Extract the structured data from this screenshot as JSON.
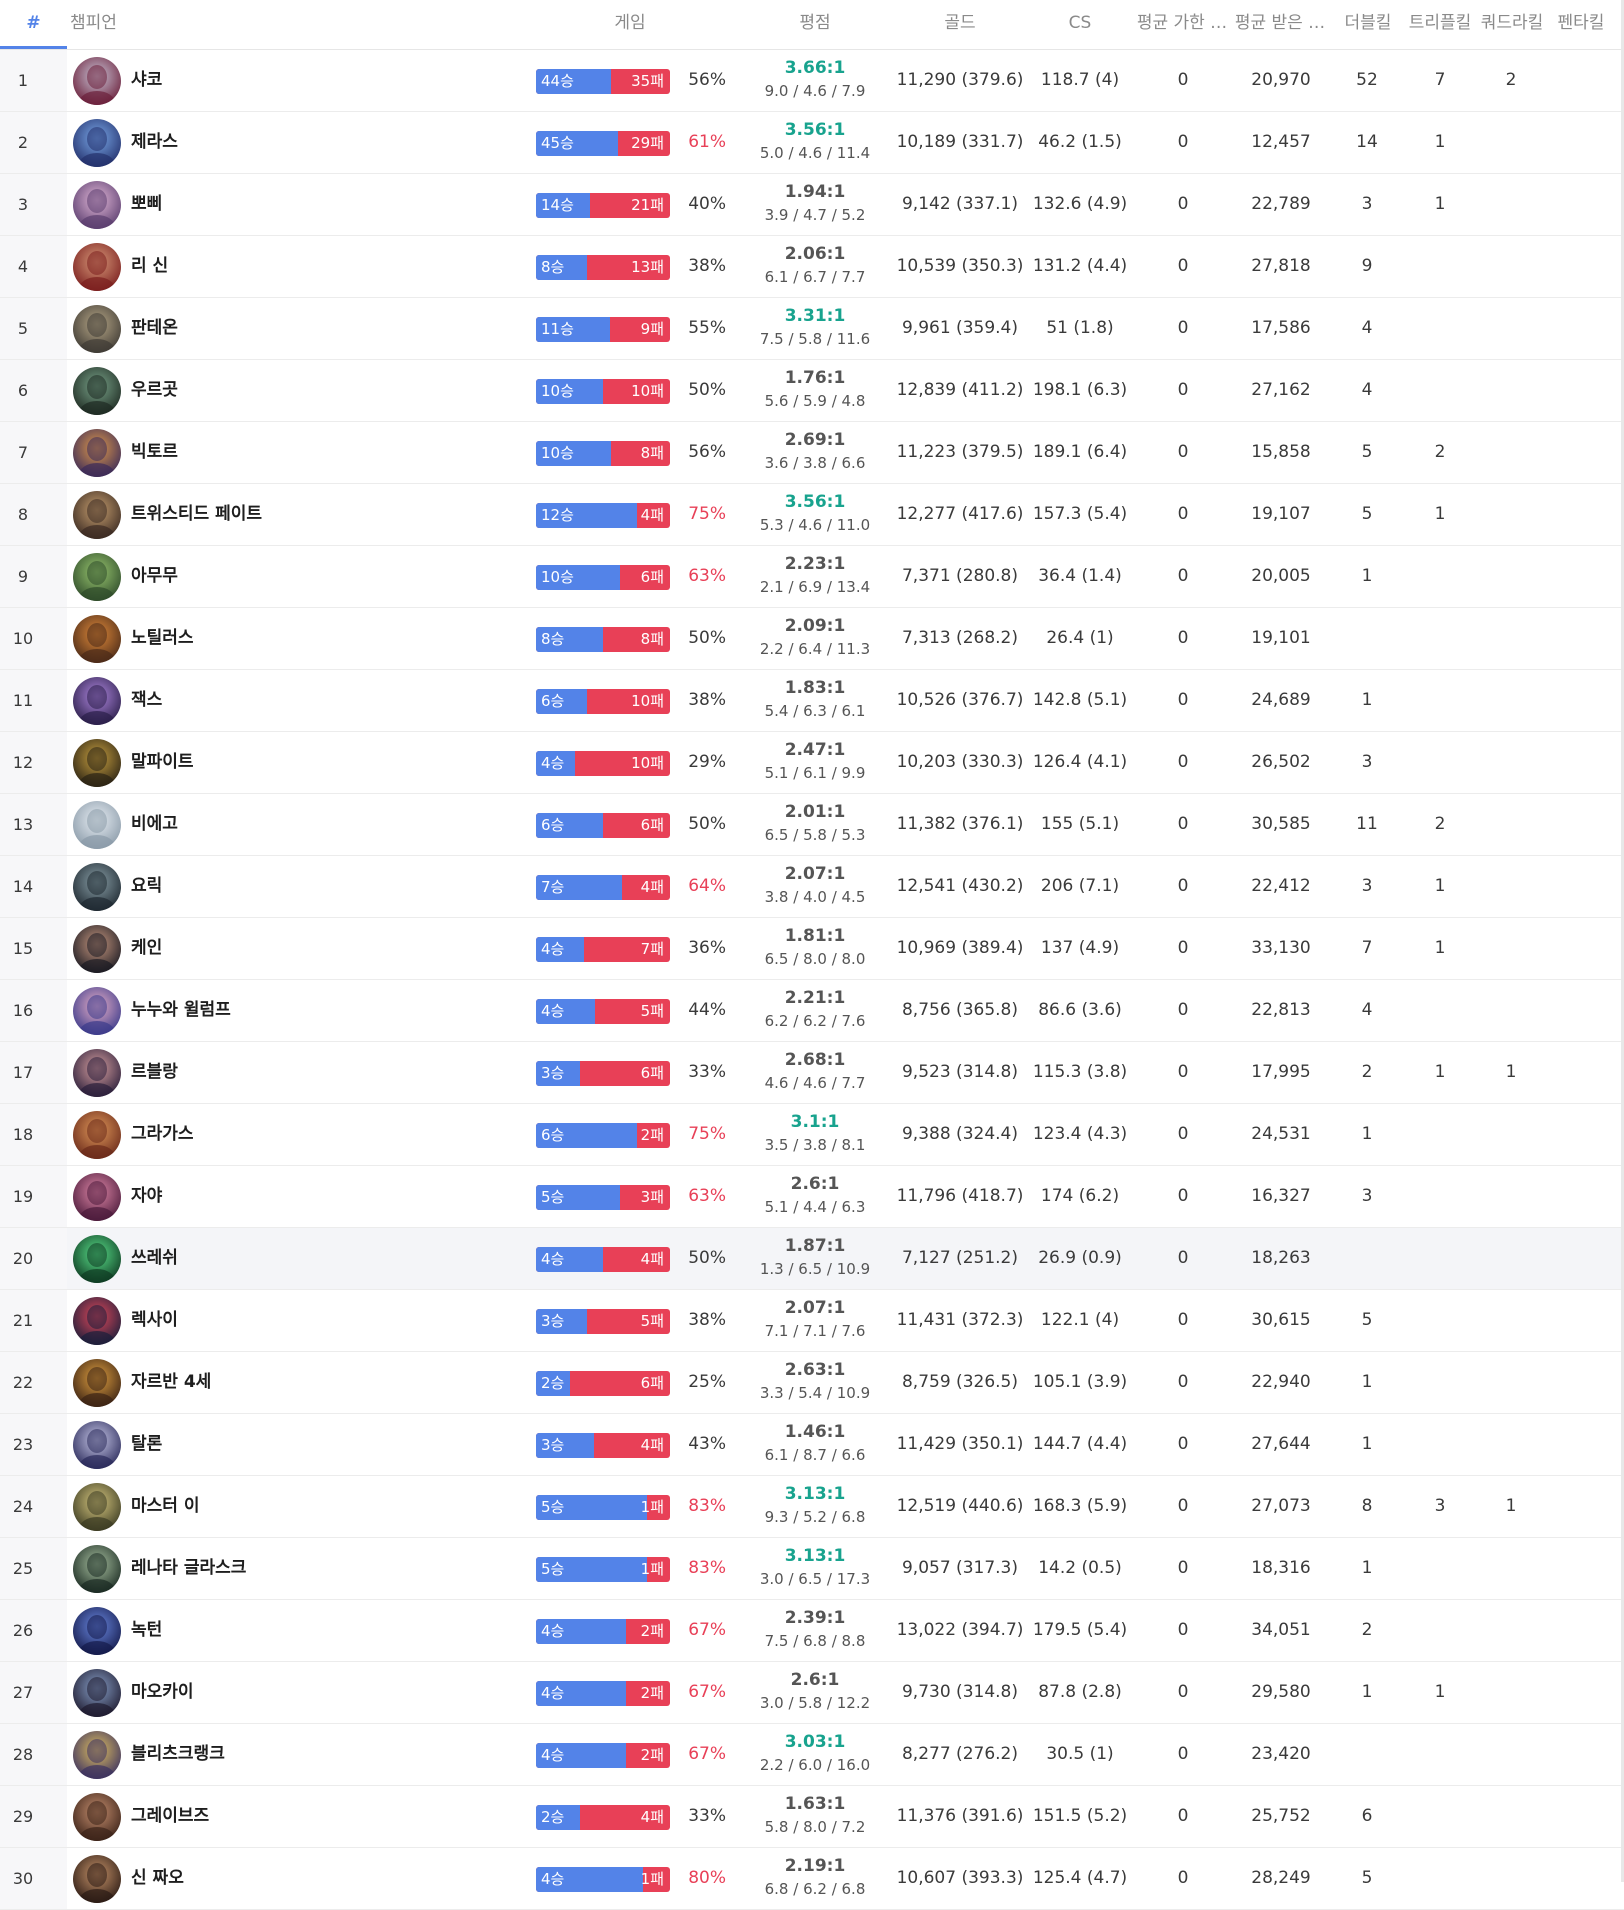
{
  "header": {
    "rank": "#",
    "champion": "챔피언",
    "games": "게임",
    "kda": "평점",
    "gold": "골드",
    "cs": "CS",
    "avg_dealt": "평균 가한 …",
    "avg_taken": "평균 받은 …",
    "double_kill": "더블킬",
    "triple_kill": "트리플킬",
    "quadra_kill": "쿼드라킬",
    "penta_kill": "펜타킬"
  },
  "colors": {
    "win": "#5383e8",
    "loss": "#e84057",
    "kda_good": "#18a38e",
    "highlight_row": "#f4f5f8"
  },
  "rows": [
    {
      "rank": "1",
      "name": "샤코",
      "wins": "44승",
      "losses": "35패",
      "wr": "56%",
      "ratio": "3.66:1",
      "avg": "9.0 / 4.6  / 7.9",
      "gold": "11,290 (379.6)",
      "cs": "118.7 (4)",
      "dealt": "0",
      "taken": "20,970",
      "dbl": "52",
      "tpl": "7",
      "qdr": "2",
      "pnt": "",
      "win_frac": 0.56,
      "icon": "shaco-portrait-icon",
      "c1": "#6b1f3a",
      "c2": "#c9c4d6"
    },
    {
      "rank": "2",
      "name": "제라스",
      "wins": "45승",
      "losses": "29패",
      "wr": "61%",
      "ratio": "3.56:1",
      "avg": "5.0 / 4.6  / 11.4",
      "gold": "10,189 (331.7)",
      "cs": "46.2 (1.5)",
      "dealt": "0",
      "taken": "12,457",
      "dbl": "14",
      "tpl": "1",
      "qdr": "",
      "pnt": "",
      "win_frac": 0.61,
      "icon": "xerath-portrait-icon",
      "c1": "#23306b",
      "c2": "#7aa8e8"
    },
    {
      "rank": "3",
      "name": "뽀삐",
      "wins": "14승",
      "losses": "21패",
      "wr": "40%",
      "ratio": "1.94:1",
      "avg": "3.9 / 4.7  / 5.2",
      "gold": "9,142 (337.1)",
      "cs": "132.6 (4.9)",
      "dealt": "0",
      "taken": "22,789",
      "dbl": "3",
      "tpl": "1",
      "qdr": "",
      "pnt": "",
      "win_frac": 0.4,
      "icon": "poppy-portrait-icon",
      "c1": "#5a3d6e",
      "c2": "#e2b8d8"
    },
    {
      "rank": "4",
      "name": "리 신",
      "wins": "8승",
      "losses": "13패",
      "wr": "38%",
      "ratio": "2.06:1",
      "avg": "6.1 / 6.7  / 7.7",
      "gold": "10,539 (350.3)",
      "cs": "131.2 (4.4)",
      "dealt": "0",
      "taken": "27,818",
      "dbl": "9",
      "tpl": "",
      "qdr": "",
      "pnt": "",
      "win_frac": 0.38,
      "icon": "lee-sin-portrait-icon",
      "c1": "#7a1e1e",
      "c2": "#d89a7a"
    },
    {
      "rank": "5",
      "name": "판테온",
      "wins": "11승",
      "losses": "9패",
      "wr": "55%",
      "ratio": "3.31:1",
      "avg": "7.5 / 5.8  / 11.6",
      "gold": "9,961 (359.4)",
      "cs": "51 (1.8)",
      "dealt": "0",
      "taken": "17,586",
      "dbl": "4",
      "tpl": "",
      "qdr": "",
      "pnt": "",
      "win_frac": 0.55,
      "icon": "pantheon-portrait-icon",
      "c1": "#3e3a34",
      "c2": "#b8a888"
    },
    {
      "rank": "6",
      "name": "우르곳",
      "wins": "10승",
      "losses": "10패",
      "wr": "50%",
      "ratio": "1.76:1",
      "avg": "5.6 / 5.9  / 4.8",
      "gold": "12,839 (411.2)",
      "cs": "198.1 (6.3)",
      "dealt": "0",
      "taken": "27,162",
      "dbl": "4",
      "tpl": "",
      "qdr": "",
      "pnt": "",
      "win_frac": 0.5,
      "icon": "urgot-portrait-icon",
      "c1": "#1e2a22",
      "c2": "#7aa48a"
    },
    {
      "rank": "7",
      "name": "빅토르",
      "wins": "10승",
      "losses": "8패",
      "wr": "56%",
      "ratio": "2.69:1",
      "avg": "3.6 / 3.8  / 6.6",
      "gold": "11,223 (379.5)",
      "cs": "189.1 (6.4)",
      "dealt": "0",
      "taken": "15,858",
      "dbl": "5",
      "tpl": "2",
      "qdr": "",
      "pnt": "",
      "win_frac": 0.56,
      "icon": "viktor-portrait-icon",
      "c1": "#3a2a58",
      "c2": "#e09a4a"
    },
    {
      "rank": "8",
      "name": "트위스티드 페이트",
      "wins": "12승",
      "losses": "4패",
      "wr": "75%",
      "ratio": "3.56:1",
      "avg": "5.3 / 4.6  / 11.0",
      "gold": "12,277 (417.6)",
      "cs": "157.3 (5.4)",
      "dealt": "0",
      "taken": "19,107",
      "dbl": "5",
      "tpl": "1",
      "qdr": "",
      "pnt": "",
      "win_frac": 0.75,
      "icon": "twisted-fate-portrait-icon",
      "c1": "#3a2a22",
      "c2": "#c8a070"
    },
    {
      "rank": "9",
      "name": "아무무",
      "wins": "10승",
      "losses": "6패",
      "wr": "63%",
      "ratio": "2.23:1",
      "avg": "2.1 / 6.9  / 13.4",
      "gold": "7,371 (280.8)",
      "cs": "36.4 (1.4)",
      "dealt": "0",
      "taken": "20,005",
      "dbl": "1",
      "tpl": "",
      "qdr": "",
      "pnt": "",
      "win_frac": 0.63,
      "icon": "amumu-portrait-icon",
      "c1": "#2e4a2a",
      "c2": "#9ac870"
    },
    {
      "rank": "10",
      "name": "노틸러스",
      "wins": "8승",
      "losses": "8패",
      "wr": "50%",
      "ratio": "2.09:1",
      "avg": "2.2 / 6.4  / 11.3",
      "gold": "7,313 (268.2)",
      "cs": "26.4 (1)",
      "dealt": "0",
      "taken": "19,101",
      "dbl": "",
      "tpl": "",
      "qdr": "",
      "pnt": "",
      "win_frac": 0.5,
      "icon": "nautilus-portrait-icon",
      "c1": "#4a2a18",
      "c2": "#e08a3a"
    },
    {
      "rank": "11",
      "name": "잭스",
      "wins": "6승",
      "losses": "10패",
      "wr": "38%",
      "ratio": "1.83:1",
      "avg": "5.4 / 6.3  / 6.1",
      "gold": "10,526 (376.7)",
      "cs": "142.8 (5.1)",
      "dealt": "0",
      "taken": "24,689",
      "dbl": "1",
      "tpl": "",
      "qdr": "",
      "pnt": "",
      "win_frac": 0.38,
      "icon": "jax-portrait-icon",
      "c1": "#2a1e48",
      "c2": "#b088e0"
    },
    {
      "rank": "12",
      "name": "말파이트",
      "wins": "4승",
      "losses": "10패",
      "wr": "29%",
      "ratio": "2.47:1",
      "avg": "5.1 / 6.1  / 9.9",
      "gold": "10,203 (330.3)",
      "cs": "126.4 (4.1)",
      "dealt": "0",
      "taken": "26,502",
      "dbl": "3",
      "tpl": "",
      "qdr": "",
      "pnt": "",
      "win_frac": 0.29,
      "icon": "malphite-portrait-icon",
      "c1": "#2a2214",
      "c2": "#c8a040"
    },
    {
      "rank": "13",
      "name": "비에고",
      "wins": "6승",
      "losses": "6패",
      "wr": "50%",
      "ratio": "2.01:1",
      "avg": "6.5 / 5.8  / 5.3",
      "gold": "11,382 (376.1)",
      "cs": "155 (5.1)",
      "dealt": "0",
      "taken": "30,585",
      "dbl": "11",
      "tpl": "2",
      "qdr": "",
      "pnt": "",
      "win_frac": 0.5,
      "icon": "viego-portrait-icon",
      "c1": "#8a9aa8",
      "c2": "#e8eef4"
    },
    {
      "rank": "14",
      "name": "요릭",
      "wins": "7승",
      "losses": "4패",
      "wr": "64%",
      "ratio": "2.07:1",
      "avg": "3.8 / 4.0  / 4.5",
      "gold": "12,541 (430.2)",
      "cs": "206 (7.1)",
      "dealt": "0",
      "taken": "22,412",
      "dbl": "3",
      "tpl": "1",
      "qdr": "",
      "pnt": "",
      "win_frac": 0.64,
      "icon": "yorick-portrait-icon",
      "c1": "#1e2830",
      "c2": "#8aa0a8"
    },
    {
      "rank": "15",
      "name": "케인",
      "wins": "4승",
      "losses": "7패",
      "wr": "36%",
      "ratio": "1.81:1",
      "avg": "6.5 / 8.0  / 8.0",
      "gold": "10,969 (389.4)",
      "cs": "137 (4.9)",
      "dealt": "0",
      "taken": "33,130",
      "dbl": "7",
      "tpl": "1",
      "qdr": "",
      "pnt": "",
      "win_frac": 0.36,
      "icon": "kayn-portrait-icon",
      "c1": "#1a1a22",
      "c2": "#c89880"
    },
    {
      "rank": "16",
      "name": "누누와 윌럼프",
      "wins": "4승",
      "losses": "5패",
      "wr": "44%",
      "ratio": "2.21:1",
      "avg": "6.2 / 6.2  / 7.6",
      "gold": "8,756 (365.8)",
      "cs": "86.6 (3.6)",
      "dealt": "0",
      "taken": "22,813",
      "dbl": "4",
      "tpl": "",
      "qdr": "",
      "pnt": "",
      "win_frac": 0.44,
      "icon": "nunu-portrait-icon",
      "c1": "#3a3a8a",
      "c2": "#e8b0c8"
    },
    {
      "rank": "17",
      "name": "르블랑",
      "wins": "3승",
      "losses": "6패",
      "wr": "33%",
      "ratio": "2.68:1",
      "avg": "4.6 / 4.6  / 7.7",
      "gold": "9,523 (314.8)",
      "cs": "115.3 (3.8)",
      "dealt": "0",
      "taken": "17,995",
      "dbl": "2",
      "tpl": "1",
      "qdr": "1",
      "pnt": "",
      "win_frac": 0.33,
      "icon": "leblanc-portrait-icon",
      "c1": "#2a1e3a",
      "c2": "#d8a0a0"
    },
    {
      "rank": "18",
      "name": "그라가스",
      "wins": "6승",
      "losses": "2패",
      "wr": "75%",
      "ratio": "3.1:1",
      "avg": "3.5 / 3.8  / 8.1",
      "gold": "9,388 (324.4)",
      "cs": "123.4 (4.3)",
      "dealt": "0",
      "taken": "24,531",
      "dbl": "1",
      "tpl": "",
      "qdr": "",
      "pnt": "",
      "win_frac": 0.75,
      "icon": "gragas-portrait-icon",
      "c1": "#6a2a1a",
      "c2": "#e0985a"
    },
    {
      "rank": "19",
      "name": "자야",
      "wins": "5승",
      "losses": "3패",
      "wr": "63%",
      "ratio": "2.6:1",
      "avg": "5.1 / 4.4  / 6.3",
      "gold": "11,796 (418.7)",
      "cs": "174 (6.2)",
      "dealt": "0",
      "taken": "16,327",
      "dbl": "3",
      "tpl": "",
      "qdr": "",
      "pnt": "",
      "win_frac": 0.63,
      "icon": "xayah-portrait-icon",
      "c1": "#4a1a3a",
      "c2": "#e088a8"
    },
    {
      "rank": "20",
      "name": "쓰레쉬",
      "wins": "4승",
      "losses": "4패",
      "wr": "50%",
      "ratio": "1.87:1",
      "avg": "1.3 / 6.5  / 10.9",
      "gold": "7,127 (251.2)",
      "cs": "26.9 (0.9)",
      "dealt": "0",
      "taken": "18,263",
      "dbl": "",
      "tpl": "",
      "qdr": "",
      "pnt": "",
      "win_frac": 0.5,
      "icon": "thresh-portrait-icon",
      "c1": "#0e3a22",
      "c2": "#5ae08a"
    },
    {
      "rank": "21",
      "name": "렉사이",
      "wins": "3승",
      "losses": "5패",
      "wr": "38%",
      "ratio": "2.07:1",
      "avg": "7.1 / 7.1  / 7.6",
      "gold": "11,431 (372.3)",
      "cs": "122.1 (4)",
      "dealt": "0",
      "taken": "30,615",
      "dbl": "5",
      "tpl": "",
      "qdr": "",
      "pnt": "",
      "win_frac": 0.38,
      "icon": "reksai-portrait-icon",
      "c1": "#1a1e3a",
      "c2": "#e0485a"
    },
    {
      "rank": "22",
      "name": "자르반 4세",
      "wins": "2승",
      "losses": "6패",
      "wr": "25%",
      "ratio": "2.63:1",
      "avg": "3.3 / 5.4  / 10.9",
      "gold": "8,759 (326.5)",
      "cs": "105.1 (3.9)",
      "dealt": "0",
      "taken": "22,940",
      "dbl": "1",
      "tpl": "",
      "qdr": "",
      "pnt": "",
      "win_frac": 0.25,
      "icon": "jarvan-portrait-icon",
      "c1": "#3a2214",
      "c2": "#e0a040"
    },
    {
      "rank": "23",
      "name": "탈론",
      "wins": "3승",
      "losses": "4패",
      "wr": "43%",
      "ratio": "1.46:1",
      "avg": "6.1 / 8.7  / 6.6",
      "gold": "11,429 (350.1)",
      "cs": "144.7 (4.4)",
      "dealt": "0",
      "taken": "27,644",
      "dbl": "1",
      "tpl": "",
      "qdr": "",
      "pnt": "",
      "win_frac": 0.43,
      "icon": "talon-portrait-icon",
      "c1": "#2a2a5a",
      "c2": "#c8c8e8"
    },
    {
      "rank": "24",
      "name": "마스터 이",
      "wins": "5승",
      "losses": "1패",
      "wr": "83%",
      "ratio": "3.13:1",
      "avg": "9.3 / 5.2  / 6.8",
      "gold": "12,519 (440.6)",
      "cs": "168.3 (5.9)",
      "dealt": "0",
      "taken": "27,073",
      "dbl": "8",
      "tpl": "3",
      "qdr": "1",
      "pnt": "",
      "win_frac": 0.83,
      "icon": "master-yi-portrait-icon",
      "c1": "#3a3a22",
      "c2": "#d8c880"
    },
    {
      "rank": "25",
      "name": "레나타 글라스크",
      "wins": "5승",
      "losses": "1패",
      "wr": "83%",
      "ratio": "3.13:1",
      "avg": "3.0 / 6.5  / 17.3",
      "gold": "9,057 (317.3)",
      "cs": "14.2 (0.5)",
      "dealt": "0",
      "taken": "18,316",
      "dbl": "1",
      "tpl": "",
      "qdr": "",
      "pnt": "",
      "win_frac": 0.83,
      "icon": "renata-portrait-icon",
      "c1": "#1a2a22",
      "c2": "#a8c0a0"
    },
    {
      "rank": "26",
      "name": "녹턴",
      "wins": "4승",
      "losses": "2패",
      "wr": "67%",
      "ratio": "2.39:1",
      "avg": "7.5 / 6.8  / 8.8",
      "gold": "13,022 (394.7)",
      "cs": "179.5 (5.4)",
      "dealt": "0",
      "taken": "34,051",
      "dbl": "2",
      "tpl": "",
      "qdr": "",
      "pnt": "",
      "win_frac": 0.67,
      "icon": "nocturne-portrait-icon",
      "c1": "#141a4a",
      "c2": "#6a88e0"
    },
    {
      "rank": "27",
      "name": "마오카이",
      "wins": "4승",
      "losses": "2패",
      "wr": "67%",
      "ratio": "2.6:1",
      "avg": "3.0 / 5.8  / 12.2",
      "gold": "9,730 (314.8)",
      "cs": "87.8 (2.8)",
      "dealt": "0",
      "taken": "29,580",
      "dbl": "1",
      "tpl": "1",
      "qdr": "",
      "pnt": "",
      "win_frac": 0.67,
      "icon": "maokai-portrait-icon",
      "c1": "#1e1a2e",
      "c2": "#88a0c8"
    },
    {
      "rank": "28",
      "name": "블리츠크랭크",
      "wins": "4승",
      "losses": "2패",
      "wr": "67%",
      "ratio": "3.03:1",
      "avg": "2.2 / 6.0  / 16.0",
      "gold": "8,277 (276.2)",
      "cs": "30.5 (1)",
      "dealt": "0",
      "taken": "23,420",
      "dbl": "",
      "tpl": "",
      "qdr": "",
      "pnt": "",
      "win_frac": 0.67,
      "icon": "blitzcrank-portrait-icon",
      "c1": "#3a3060",
      "c2": "#e0c060"
    },
    {
      "rank": "29",
      "name": "그레이브즈",
      "wins": "2승",
      "losses": "4패",
      "wr": "33%",
      "ratio": "1.63:1",
      "avg": "5.8 / 8.0  / 7.2",
      "gold": "11,376 (391.6)",
      "cs": "151.5 (5.2)",
      "dealt": "0",
      "taken": "25,752",
      "dbl": "6",
      "tpl": "",
      "qdr": "",
      "pnt": "",
      "win_frac": 0.33,
      "icon": "graves-portrait-icon",
      "c1": "#3a2218",
      "c2": "#c89070"
    },
    {
      "rank": "30",
      "name": "신 짜오",
      "wins": "4승",
      "losses": "1패",
      "wr": "80%",
      "ratio": "2.19:1",
      "avg": "6.8 / 6.2  / 6.8",
      "gold": "10,607 (393.3)",
      "cs": "125.4 (4.7)",
      "dealt": "0",
      "taken": "28,249",
      "dbl": "5",
      "tpl": "",
      "qdr": "",
      "pnt": "",
      "win_frac": 0.8,
      "icon": "xin-zhao-portrait-icon",
      "c1": "#2a1a14",
      "c2": "#c8946a"
    }
  ]
}
